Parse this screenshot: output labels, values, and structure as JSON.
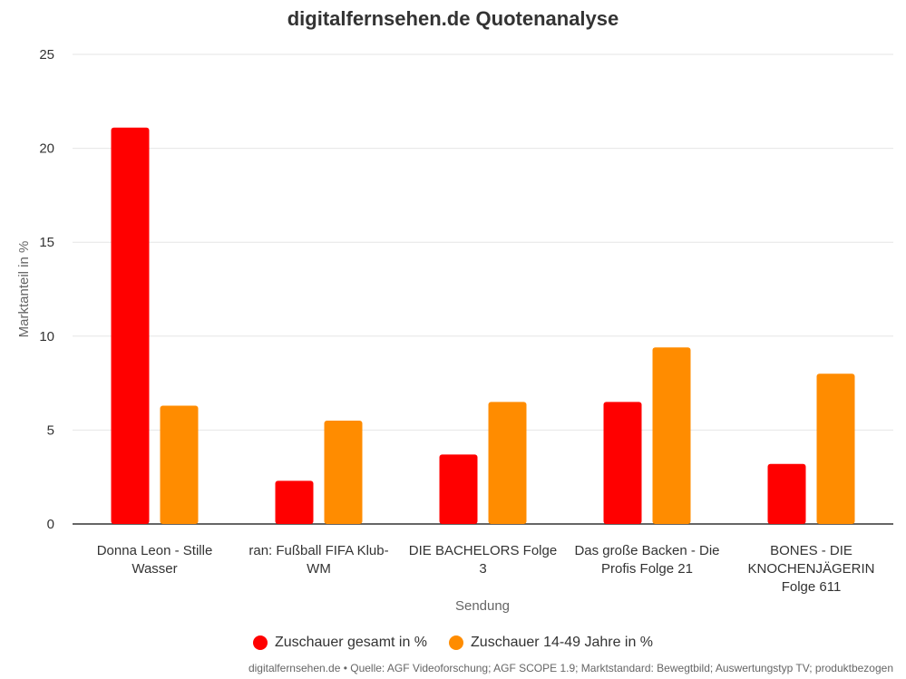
{
  "chart_data": {
    "type": "bar",
    "title": "digitalfernsehen.de Quotenanalyse",
    "xlabel": "Sendung",
    "ylabel": "Marktanteil in %",
    "ylim": [
      0,
      25
    ],
    "yticks": [
      0,
      5,
      10,
      15,
      20,
      25
    ],
    "grid": true,
    "legend_position": "bottom",
    "categories": [
      [
        "Donna Leon - Stille",
        "Wasser"
      ],
      [
        "ran: Fußball FIFA Klub-",
        "WM"
      ],
      [
        "DIE BACHELORS Folge",
        "3"
      ],
      [
        "Das große Backen - Die",
        "Profis Folge 21"
      ],
      [
        "BONES - DIE",
        "KNOCHENJÄGERIN",
        "Folge 611"
      ]
    ],
    "series": [
      {
        "name": "Zuschauer gesamt in %",
        "color": "#ff0000",
        "values": [
          21.1,
          2.3,
          3.7,
          6.5,
          3.2
        ]
      },
      {
        "name": "Zuschauer 14-49 Jahre in %",
        "color": "#ff8c00",
        "values": [
          6.3,
          5.5,
          6.5,
          9.4,
          8.0
        ]
      }
    ]
  },
  "footer": "digitalfernsehen.de • Quelle: AGF Videoforschung; AGF SCOPE 1.9; Marktstandard: Bewegtbild; Auswertungstyp TV; produktbezogen"
}
